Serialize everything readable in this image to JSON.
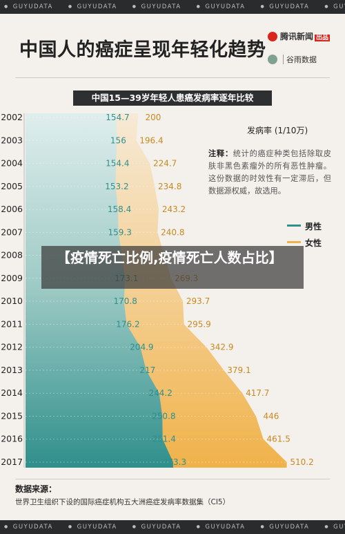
{
  "watermark": {
    "text": "GUYUDATA"
  },
  "header": {
    "title": "中国人的癌症呈现年轻化趋势",
    "brand_primary": "腾讯新闻",
    "brand_primary_tag": "出品",
    "brand_secondary": "谷雨数据"
  },
  "overlay": {
    "headline": "【疫情死亡比例,疫情死亡人数占比】"
  },
  "chart_data": {
    "type": "area",
    "title": "中国15—39岁年轻人患癌发病率逐年比较",
    "unit_label": "发病率 (1/10万)",
    "note_label": "注释：",
    "note": "统计的癌症种类包括除取皮肤非黑色素瘤外的所有恶性肿瘤。这份数据的时效性有一定滞后，但数据源权威，故选用。",
    "categories": [
      "2002",
      "2003",
      "2004",
      "2005",
      "2006",
      "2007",
      "2008",
      "2009",
      "2010",
      "2011",
      "2012",
      "2013",
      "2014",
      "2015",
      "2016",
      "2017"
    ],
    "series": [
      {
        "name": "男性",
        "color": "#2f8f8b",
        "values": [
          154.7,
          156,
          154.4,
          153.2,
          158.4,
          159.3,
          null,
          173.1,
          170.8,
          176.2,
          204.9,
          217,
          244.2,
          250.8,
          251.4,
          273.3
        ]
      },
      {
        "name": "女性",
        "color": "#f0b24a",
        "values": [
          200,
          196.4,
          224.7,
          234.8,
          243.2,
          240.8,
          null,
          269.3,
          293.7,
          295.9,
          342.9,
          379.1,
          417.7,
          446,
          461.5,
          510.2
        ]
      }
    ],
    "legend_position": "right"
  },
  "footer": {
    "source_title": "数据来源：",
    "source_text": "世界卫生组织下设的国际癌症机构五大洲癌症发病率数据集（CI5）"
  }
}
